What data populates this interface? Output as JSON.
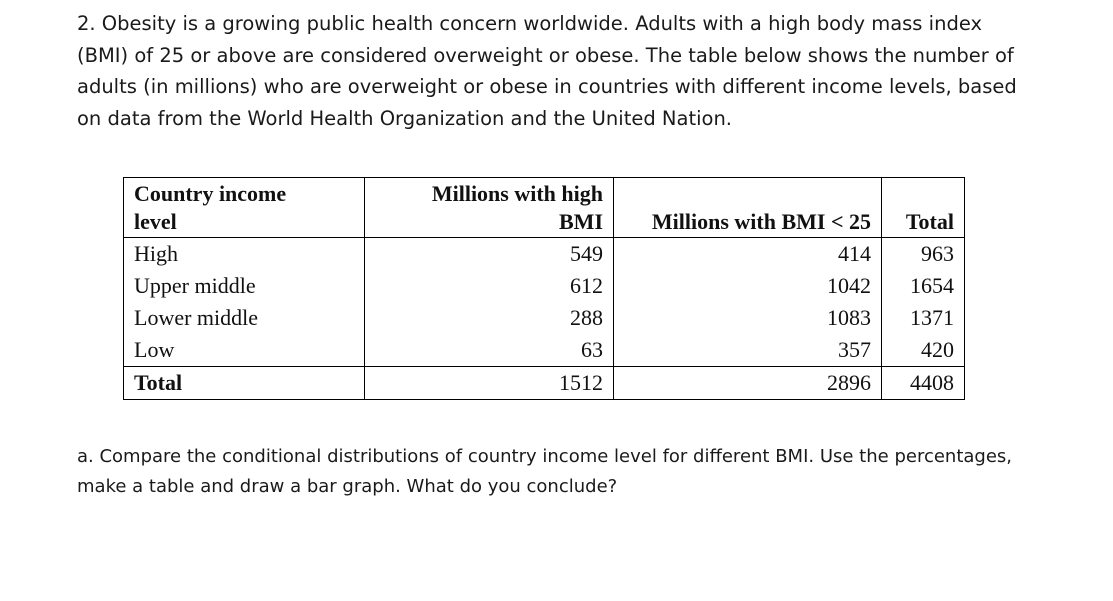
{
  "intro": "2. Obesity is a growing public health concern worldwide. Adults with a high body mass index (BMI) of 25 or above are considered overweight or obese. The table below shows the number of adults (in millions) who are overweight or obese in countries with different income levels, based on data from the World Health Organization and the United Nation.",
  "table": {
    "headers": [
      "Country income level",
      "Millions with high BMI",
      "Millions with BMI < 25",
      "Total"
    ],
    "rows": [
      [
        "High",
        "549",
        "414",
        "963"
      ],
      [
        "Upper middle",
        "612",
        "1042",
        "1654"
      ],
      [
        "Lower middle",
        "288",
        "1083",
        "1371"
      ],
      [
        "Low",
        "63",
        "357",
        "420"
      ]
    ],
    "total_row": [
      "Total",
      "1512",
      "2896",
      "4408"
    ]
  },
  "question": "a. Compare the conditional distributions of country income level for different BMI. Use the percentages, make a table and draw a bar graph. What do you conclude?"
}
